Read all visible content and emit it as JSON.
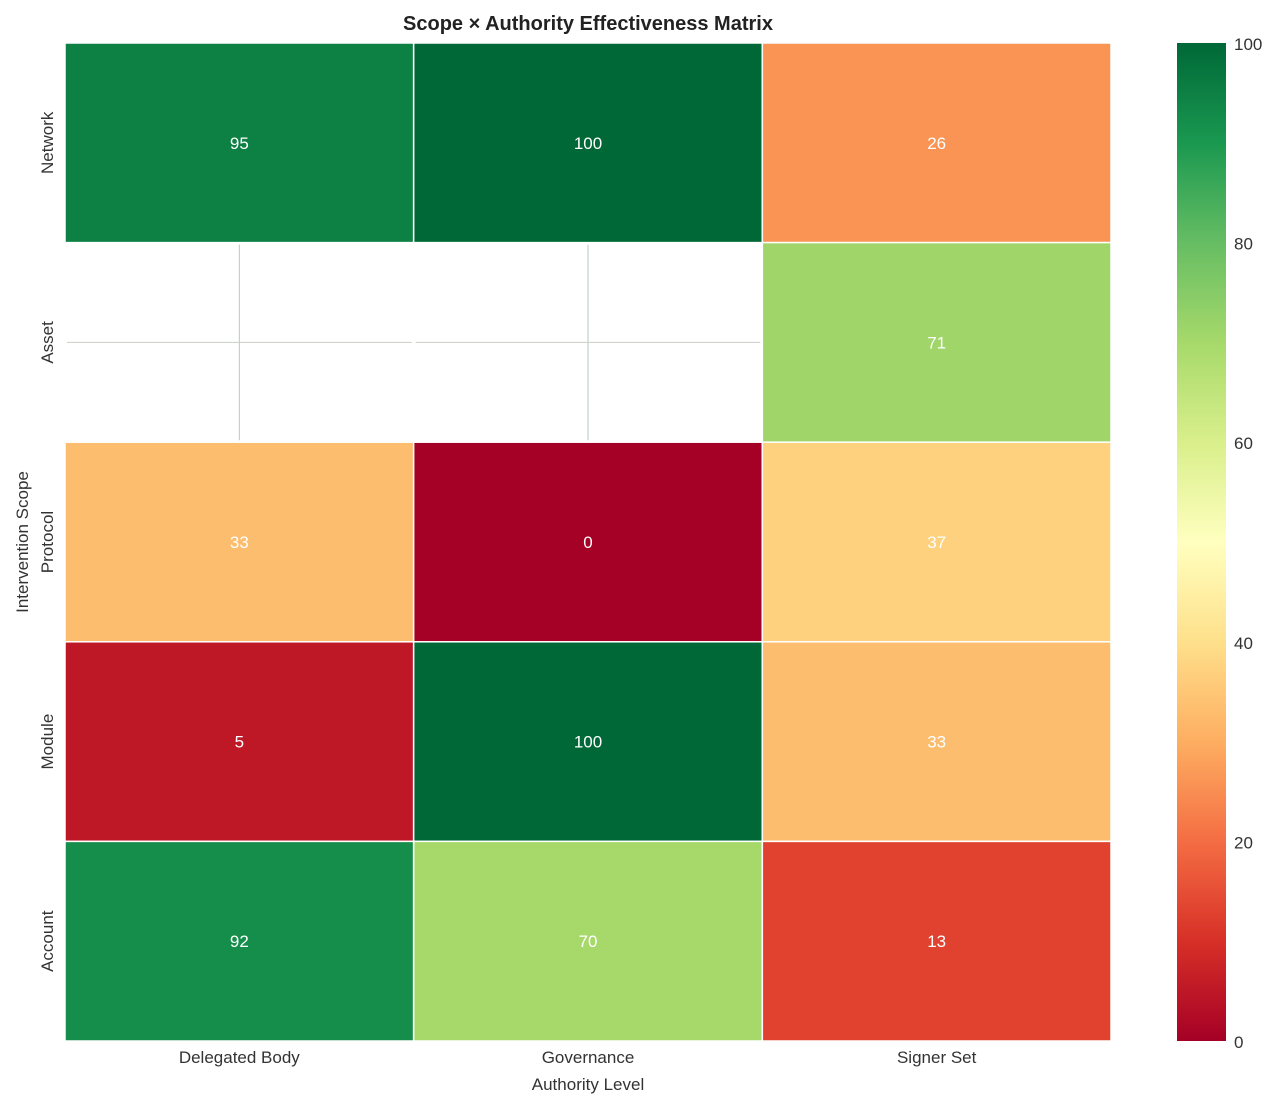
{
  "chart_data": {
    "type": "heatmap",
    "title": "Scope × Authority Effectiveness Matrix",
    "xlabel": "Authority Level",
    "ylabel": "Intervention Scope",
    "x_categories": [
      "Delegated Body",
      "Governance",
      "Signer Set"
    ],
    "y_categories": [
      "Network",
      "Asset",
      "Protocol",
      "Module",
      "Account"
    ],
    "values": [
      [
        95,
        100,
        26
      ],
      [
        null,
        null,
        71
      ],
      [
        33,
        0,
        37
      ],
      [
        5,
        100,
        33
      ],
      [
        92,
        70,
        13
      ]
    ],
    "colormap": "RdYlGn",
    "vmin": 0,
    "vmax": 100,
    "colorbar_ticks": [
      0,
      20,
      40,
      60,
      80,
      100
    ],
    "annotated": true,
    "grid": false
  }
}
